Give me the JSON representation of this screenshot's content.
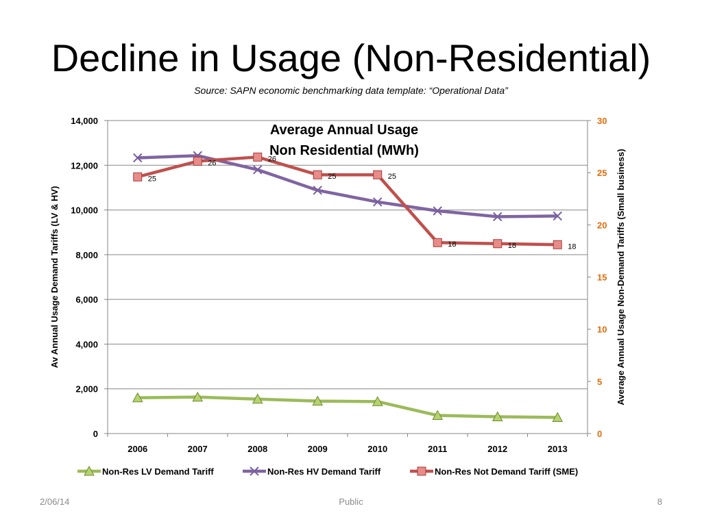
{
  "slide": {
    "title": "Decline in Usage (Non-Residential)",
    "subtitle": "Source: SAPN economic benchmarking data template: “Operational Data”"
  },
  "footer": {
    "date": "2/06/14",
    "classification": "Public",
    "page": "8"
  },
  "chart_data": {
    "type": "line",
    "title": "Average Annual Usage Non Residential (MWh)",
    "title_lines": [
      "Average Annual Usage",
      "Non Residential (MWh)"
    ],
    "categories": [
      "2006",
      "2007",
      "2008",
      "2009",
      "2010",
      "2011",
      "2012",
      "2013"
    ],
    "ylabel": "Av Annual Usage Demand Tariffs (LV & HV)",
    "y2label": "Average Annual Usage Non-Demand Tariffs (Small business)",
    "ylim": [
      0,
      14000
    ],
    "yticks": [
      0,
      2000,
      4000,
      6000,
      8000,
      10000,
      12000,
      14000
    ],
    "ytick_labels": [
      "0",
      "2,000",
      "4,000",
      "6,000",
      "8,000",
      "10,000",
      "12,000",
      "14,000"
    ],
    "y2lim": [
      0,
      30
    ],
    "y2ticks": [
      0,
      5,
      10,
      15,
      20,
      25,
      30
    ],
    "y2tick_labels": [
      "0",
      "5",
      "10",
      "15",
      "20",
      "25",
      "30"
    ],
    "grid": true,
    "legend": "bottom",
    "series": [
      {
        "name": "Non-Res LV Demand Tariff",
        "axis": "left",
        "marker": "triangle",
        "color": "#9BBB59",
        "values": [
          1600,
          1630,
          1540,
          1450,
          1430,
          810,
          750,
          720
        ]
      },
      {
        "name": "Non-Res HV Demand Tariff",
        "axis": "left",
        "marker": "x",
        "color": "#8064A2",
        "values": [
          12330,
          12430,
          11800,
          10880,
          10360,
          9960,
          9700,
          9730
        ]
      },
      {
        "name": "Non-Res Not Demand Tariff (SME)",
        "axis": "right",
        "marker": "square",
        "color": "#C0504D",
        "values": [
          24.6,
          26.1,
          26.5,
          24.8,
          24.8,
          18.3,
          18.2,
          18.1
        ],
        "data_labels": [
          "25",
          "26",
          "26",
          "25",
          "25",
          "18",
          "18",
          "18"
        ]
      }
    ]
  }
}
